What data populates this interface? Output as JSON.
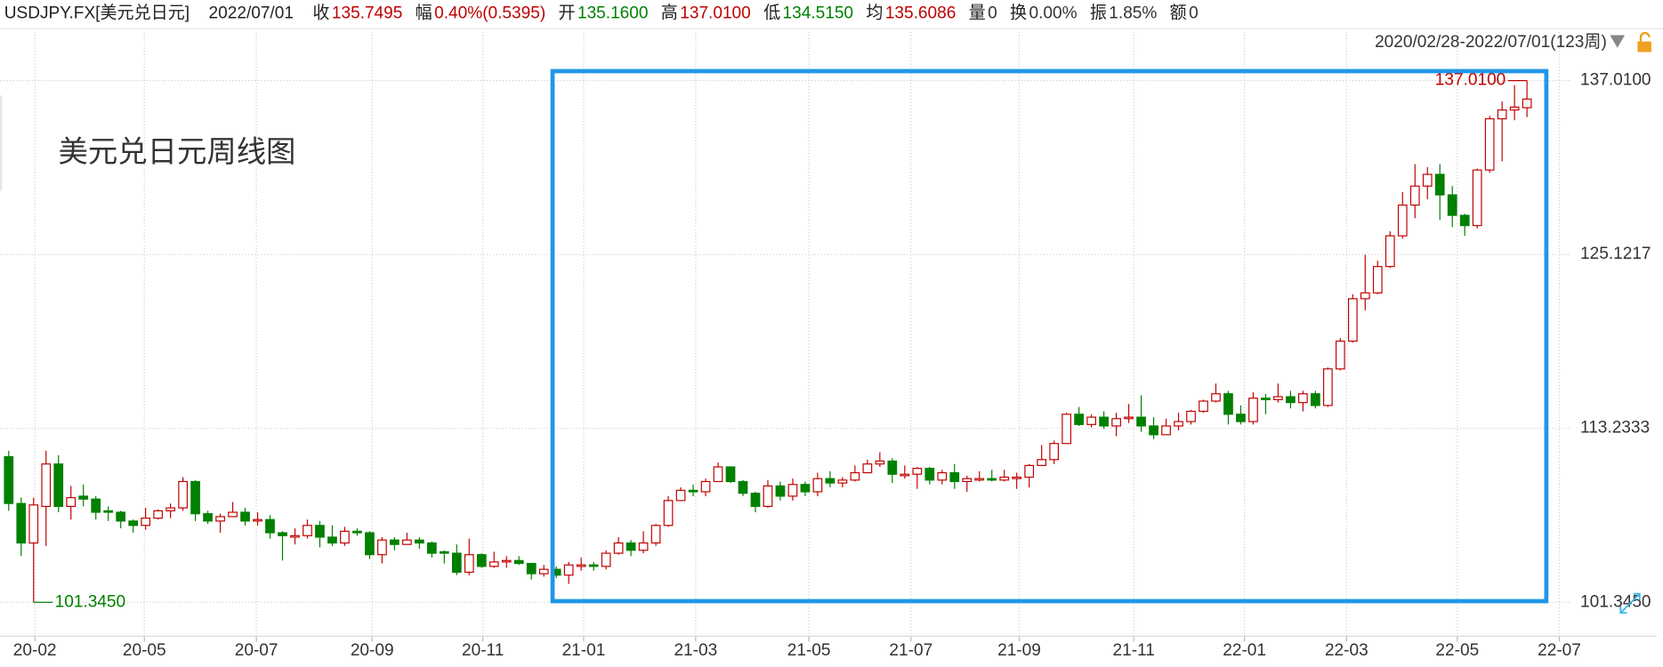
{
  "header": {
    "symbol": "USDJPY.FX[美元兑日元]",
    "date": "2022/07/01",
    "fields": [
      {
        "label": "收",
        "value": "135.7495",
        "color": "#c00000"
      },
      {
        "label": "幅",
        "value": "0.40%(0.5395)",
        "color": "#c00000"
      },
      {
        "label": "开",
        "value": "135.1600",
        "color": "#008000"
      },
      {
        "label": "高",
        "value": "137.0100",
        "color": "#c00000"
      },
      {
        "label": "低",
        "value": "134.5150",
        "color": "#008000"
      },
      {
        "label": "均",
        "value": "135.6086",
        "color": "#c00000"
      },
      {
        "label": "量",
        "value": "0",
        "color": "#333333"
      },
      {
        "label": "换",
        "value": "0.00%",
        "color": "#333333"
      },
      {
        "label": "振",
        "value": "1.85%",
        "color": "#333333"
      },
      {
        "label": "额",
        "value": "0",
        "color": "#333333"
      }
    ]
  },
  "chart_data": {
    "type": "candlestick",
    "title": "美元兑日元周线图",
    "range_label": "2020/02/28-2022/07/01(123周)",
    "up_color": "#c00000",
    "down_color": "#008000",
    "grid": true,
    "high_label": "137.0100",
    "low_label": "101.3450",
    "ylim": [
      99.03,
      138.89
    ],
    "yticks": [
      {
        "value": 101.345,
        "label": "101.3450"
      },
      {
        "value": 113.2333,
        "label": "113.2333"
      },
      {
        "value": 125.1217,
        "label": "125.1217"
      },
      {
        "value": 137.01,
        "label": "137.0100"
      }
    ],
    "xlim": [
      -0.7,
      125.6
    ],
    "xticks": [
      {
        "value": 2.1,
        "label": "20-02"
      },
      {
        "value": 10.9,
        "label": "20-05"
      },
      {
        "value": 19.9,
        "label": "20-07"
      },
      {
        "value": 29.2,
        "label": "20-09"
      },
      {
        "value": 38.1,
        "label": "20-11"
      },
      {
        "value": 46.2,
        "label": "21-01"
      },
      {
        "value": 55.2,
        "label": "21-03"
      },
      {
        "value": 64.3,
        "label": "21-05"
      },
      {
        "value": 72.5,
        "label": "21-07"
      },
      {
        "value": 81.2,
        "label": "21-09"
      },
      {
        "value": 90.4,
        "label": "21-11"
      },
      {
        "value": 99.3,
        "label": "22-01"
      },
      {
        "value": 107.5,
        "label": "22-03"
      },
      {
        "value": 116.4,
        "label": "22-05"
      },
      {
        "value": 124.6,
        "label": "22-07"
      }
    ],
    "open": [
      111.3,
      108.1,
      105.4,
      107.9,
      110.8,
      107.9,
      108.6,
      108.4,
      107.6,
      107.5,
      106.9,
      106.6,
      107.1,
      107.6,
      107.8,
      109.6,
      107.4,
      106.9,
      107.2,
      107.5,
      106.9,
      107.0,
      106.1,
      105.8,
      105.9,
      106.6,
      105.8,
      105.4,
      106.2,
      106.1,
      104.6,
      105.6,
      105.3,
      105.6,
      105.4,
      104.8,
      104.7,
      103.4,
      104.6,
      103.8,
      104.1,
      104.2,
      104.0,
      103.3,
      103.6,
      103.2,
      103.8,
      103.9,
      103.8,
      104.7,
      105.4,
      104.9,
      105.4,
      106.6,
      108.3,
      109.0,
      108.9,
      109.6,
      110.6,
      109.6,
      108.8,
      107.9,
      109.3,
      108.6,
      109.4,
      108.9,
      109.8,
      109.5,
      109.7,
      110.2,
      110.8,
      111.0,
      110.0,
      110.1,
      110.5,
      109.7,
      110.2,
      109.6,
      109.7,
      109.8,
      109.7,
      109.8,
      109.9,
      110.7,
      111.1,
      112.2,
      114.2,
      113.5,
      114.0,
      113.4,
      113.9,
      114.0,
      113.4,
      112.8,
      113.4,
      113.7,
      114.4,
      115.1,
      115.6,
      114.2,
      113.7,
      115.3,
      115.2,
      115.4,
      115.0,
      115.6,
      114.8,
      117.3,
      119.2,
      122.1,
      122.5,
      124.3,
      126.4,
      128.5,
      129.8,
      130.6,
      129.2,
      127.8,
      127.1,
      130.9,
      134.4,
      135.0,
      135.16
    ],
    "high": [
      111.7,
      108.5,
      108.5,
      111.7,
      111.4,
      109.3,
      109.4,
      108.6,
      107.9,
      107.6,
      107.0,
      107.8,
      107.7,
      108.1,
      109.9,
      109.7,
      107.6,
      107.4,
      108.2,
      107.8,
      107.5,
      107.3,
      106.2,
      106.4,
      107.0,
      106.9,
      106.6,
      106.5,
      106.4,
      106.2,
      105.8,
      105.8,
      106.1,
      105.8,
      105.5,
      104.9,
      105.3,
      105.7,
      104.7,
      104.8,
      104.5,
      104.5,
      104.0,
      103.9,
      103.8,
      104.1,
      104.4,
      104.1,
      104.9,
      105.8,
      105.6,
      106.2,
      106.7,
      108.6,
      109.2,
      109.4,
      109.8,
      110.9,
      110.6,
      109.7,
      108.9,
      109.7,
      109.6,
      109.8,
      109.6,
      110.2,
      110.3,
      109.9,
      110.7,
      111.1,
      111.6,
      111.2,
      110.7,
      110.6,
      110.6,
      110.4,
      110.8,
      110.0,
      110.3,
      110.4,
      110.4,
      110.2,
      110.8,
      112.1,
      112.4,
      114.3,
      114.7,
      114.2,
      114.4,
      114.3,
      114.9,
      115.5,
      114.0,
      113.9,
      114.3,
      114.5,
      115.2,
      116.3,
      115.8,
      114.8,
      115.7,
      115.6,
      116.3,
      115.8,
      115.8,
      115.8,
      117.4,
      119.4,
      122.4,
      125.1,
      124.7,
      126.7,
      129.4,
      131.3,
      131.1,
      131.3,
      129.8,
      127.9,
      131.0,
      134.6,
      135.6,
      136.7,
      137.01
    ],
    "low": [
      107.6,
      104.5,
      101.345,
      105.2,
      107.5,
      107.0,
      107.9,
      107.0,
      106.9,
      106.4,
      106.1,
      106.3,
      107.0,
      107.1,
      107.6,
      106.9,
      106.7,
      106.1,
      107.2,
      106.6,
      106.6,
      105.7,
      104.2,
      105.3,
      105.7,
      105.1,
      105.2,
      105.2,
      105.9,
      104.3,
      104.0,
      104.9,
      105.3,
      105.0,
      104.4,
      104.0,
      103.2,
      103.2,
      103.7,
      103.7,
      103.7,
      103.9,
      102.9,
      103.1,
      103.0,
      102.6,
      103.5,
      103.5,
      103.6,
      104.6,
      104.5,
      104.7,
      105.2,
      106.5,
      108.3,
      108.6,
      108.6,
      109.7,
      109.5,
      108.6,
      107.5,
      107.8,
      108.3,
      108.3,
      108.6,
      108.6,
      109.2,
      109.2,
      109.6,
      110.2,
      110.6,
      109.5,
      109.8,
      109.1,
      109.4,
      109.4,
      109.1,
      108.9,
      109.6,
      109.6,
      109.6,
      109.1,
      109.2,
      110.8,
      110.8,
      112.2,
      113.4,
      113.3,
      113.2,
      112.7,
      113.6,
      113.0,
      112.5,
      112.8,
      113.1,
      113.5,
      114.3,
      115.0,
      113.5,
      113.5,
      113.5,
      114.2,
      115.0,
      114.6,
      114.4,
      114.6,
      114.7,
      117.2,
      119.1,
      121.3,
      122.4,
      124.2,
      126.2,
      127.6,
      128.9,
      127.5,
      127.0,
      126.4,
      126.9,
      130.7,
      131.5,
      134.3,
      134.515
    ],
    "close": [
      108.1,
      105.4,
      108.0,
      110.8,
      107.9,
      108.5,
      108.4,
      107.5,
      107.5,
      106.9,
      106.6,
      107.1,
      107.6,
      107.8,
      109.6,
      107.4,
      106.9,
      107.2,
      107.5,
      106.9,
      107.0,
      106.1,
      105.9,
      105.9,
      106.6,
      105.8,
      105.4,
      106.2,
      106.1,
      104.6,
      105.6,
      105.3,
      105.6,
      105.4,
      104.7,
      104.7,
      103.4,
      104.6,
      103.8,
      104.1,
      104.2,
      104.0,
      103.3,
      103.6,
      103.2,
      103.9,
      103.9,
      103.8,
      104.7,
      105.4,
      104.9,
      105.4,
      106.6,
      108.3,
      109.0,
      108.9,
      109.6,
      110.6,
      109.6,
      108.8,
      107.9,
      109.3,
      108.6,
      109.4,
      108.9,
      109.8,
      109.5,
      109.7,
      110.2,
      110.8,
      111.0,
      110.1,
      110.1,
      110.5,
      109.7,
      110.2,
      109.6,
      109.8,
      109.8,
      109.7,
      109.9,
      109.9,
      110.7,
      111.1,
      112.2,
      114.2,
      113.5,
      114.0,
      113.4,
      113.9,
      114.0,
      113.4,
      112.8,
      113.4,
      113.7,
      114.4,
      115.1,
      115.6,
      114.2,
      113.7,
      115.3,
      115.2,
      115.4,
      115.0,
      115.6,
      114.8,
      117.3,
      119.2,
      122.1,
      122.5,
      124.3,
      126.4,
      128.5,
      129.8,
      130.6,
      129.2,
      127.8,
      127.1,
      130.9,
      134.4,
      135.0,
      135.2,
      135.7495
    ]
  }
}
